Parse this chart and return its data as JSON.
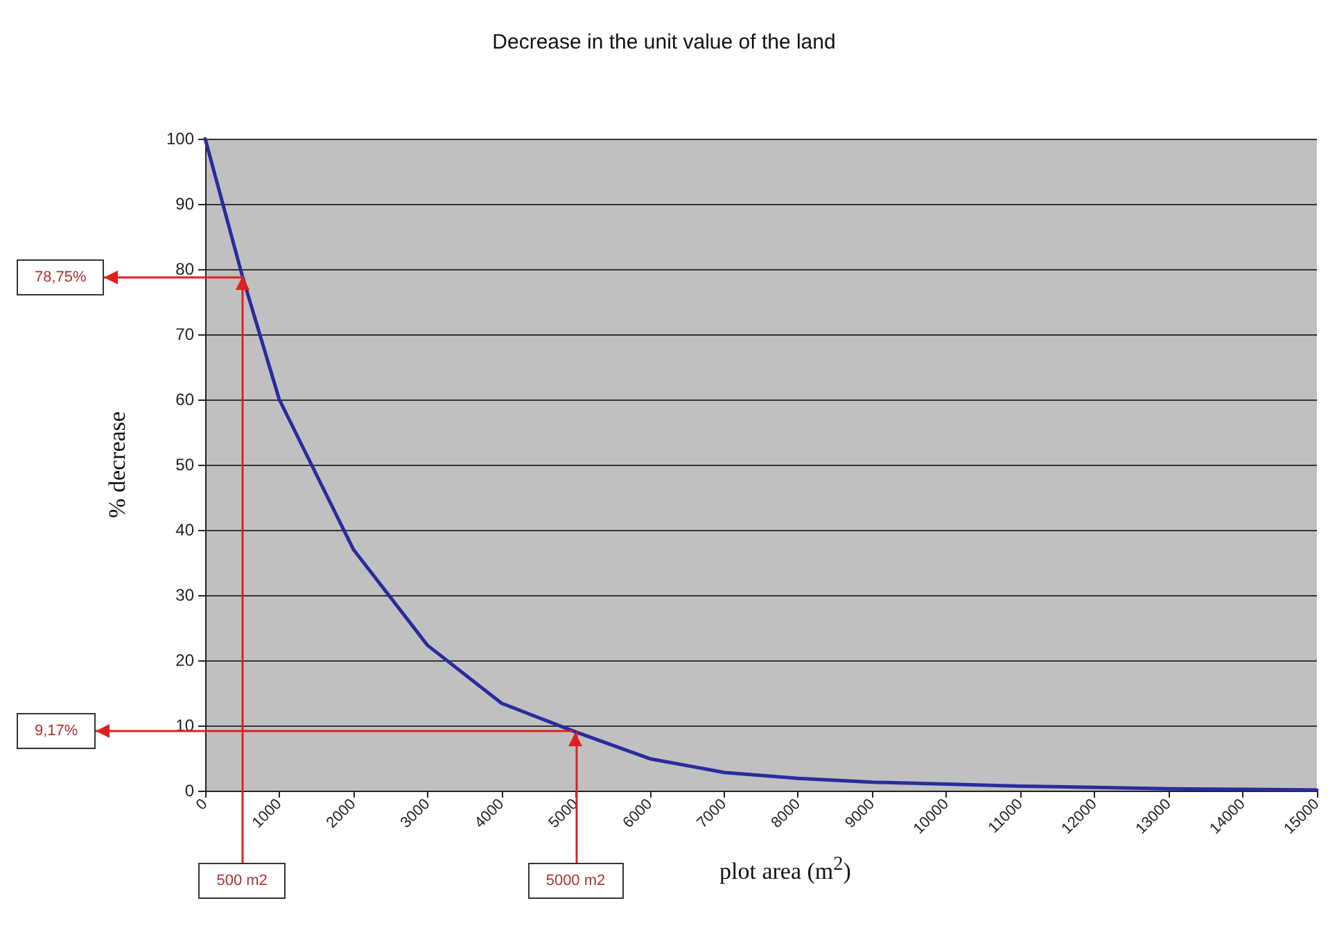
{
  "chart_data": {
    "type": "line",
    "title": "Decrease in the unit value of the land",
    "xlabel": "plot area (m$^{2}$)",
    "ylabel": "% decrease",
    "x": [
      0,
      500,
      1000,
      2000,
      3000,
      4000,
      5000,
      6000,
      7000,
      8000,
      9000,
      10000,
      11000,
      12000,
      13000,
      14000,
      15000
    ],
    "series": [
      {
        "color": "#2b2b9e",
        "values": [
          100,
          79,
          60,
          37,
          22.3,
          13.4,
          9,
          4.9,
          2.8,
          1.9,
          1.3,
          1.0,
          0.7,
          0.5,
          0.3,
          0.2,
          0.1
        ]
      }
    ],
    "xlim": [
      0,
      15000
    ],
    "xticks": [
      0,
      1000,
      2000,
      3000,
      4000,
      5000,
      6000,
      7000,
      8000,
      9000,
      10000,
      11000,
      12000,
      13000,
      14000,
      15000
    ],
    "ylim": [
      0,
      100
    ],
    "yticks": [
      0,
      10,
      20,
      30,
      40,
      50,
      60,
      70,
      80,
      90,
      100
    ],
    "grid": "y",
    "marker": "none",
    "line_style": "solid",
    "ref_lines": [
      {
        "axis": "y",
        "value": 78.75,
        "label": "78,75%",
        "color": "#e02020"
      },
      {
        "axis": "y",
        "value": 9.17,
        "label": "9,17%",
        "color": "#e02020"
      },
      {
        "axis": "x",
        "value": 500,
        "label": "500 m2",
        "color": "#e02020"
      },
      {
        "axis": "x",
        "value": 5000,
        "label": "5000 m2",
        "color": "#e02020"
      }
    ]
  }
}
